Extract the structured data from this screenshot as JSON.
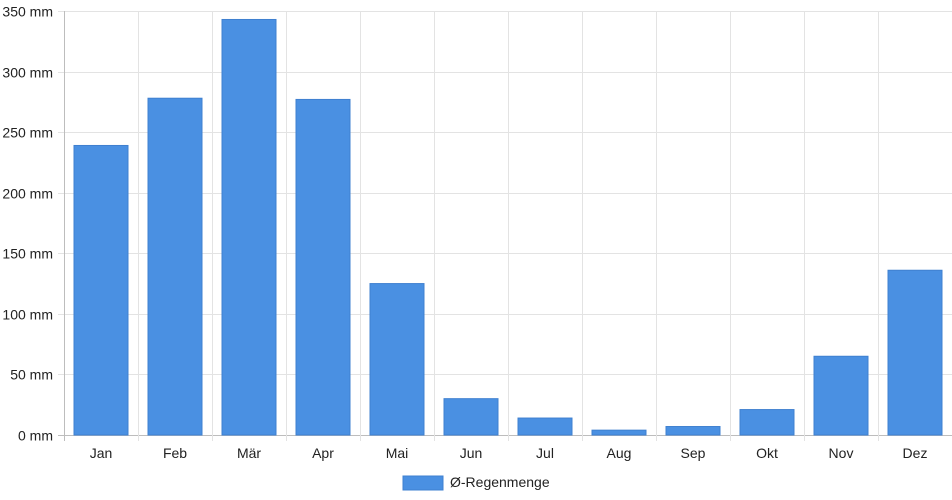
{
  "chart_data": {
    "type": "bar",
    "categories": [
      "Jan",
      "Feb",
      "Mär",
      "Apr",
      "Mai",
      "Jun",
      "Jul",
      "Aug",
      "Sep",
      "Okt",
      "Nov",
      "Dez"
    ],
    "series": [
      {
        "name": "Ø-Regenmenge",
        "values": [
          239,
          278,
          343,
          277,
          125,
          30,
          14,
          4,
          7,
          21,
          65,
          136
        ],
        "color": "#4a90e2"
      }
    ],
    "yunit": "mm",
    "ylim": [
      0,
      350
    ],
    "yticks": [
      0,
      50,
      100,
      150,
      200,
      250,
      300,
      350
    ],
    "grid": true,
    "legend_position": "bottom-center"
  }
}
